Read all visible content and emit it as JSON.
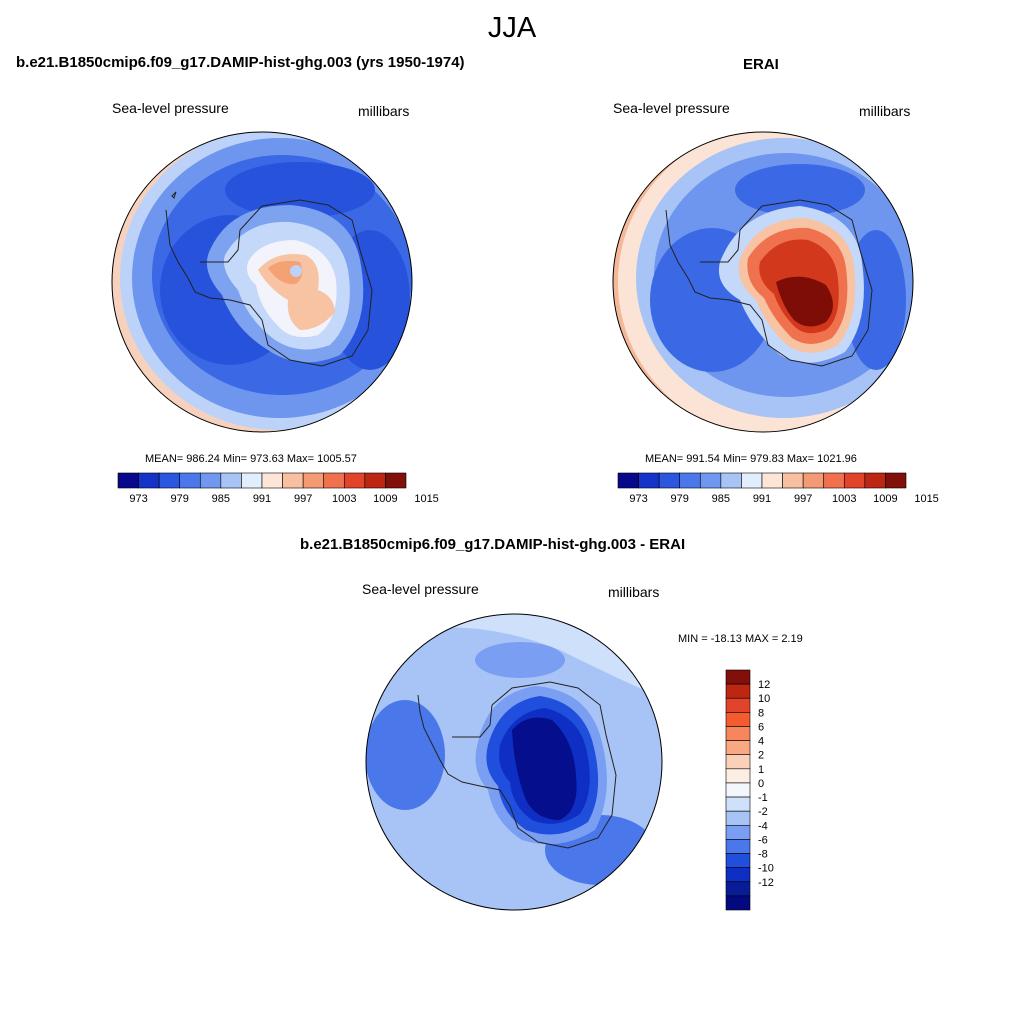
{
  "figure": {
    "season": "JJA"
  },
  "panels": [
    {
      "title": "b.e21.B1850cmip6.f09_g17.DAMIP-hist-ghg.003 (yrs 1950-1974)",
      "left_label": "Sea-level pressure",
      "right_label": "millibars",
      "stats": "MEAN= 986.24  Min= 973.63  Max= 1005.57",
      "colorbar_ticks": [
        "973",
        "979",
        "985",
        "991",
        "997",
        "1003",
        "1009",
        "1015"
      ],
      "colorbar_colors": [
        "#08088a",
        "#1434c9",
        "#2a56e0",
        "#4a78ea",
        "#7098f0",
        "#a8c4f6",
        "#e2eefc",
        "#fde6d8",
        "#f8c0a0",
        "#f49a74",
        "#ef714e",
        "#e1442b",
        "#bc2613",
        "#82100a"
      ],
      "antarctic_max_color": "#f4a274"
    },
    {
      "title": "ERAI",
      "left_label": "Sea-level pressure",
      "right_label": "millibars",
      "stats": "MEAN= 991.54  Min= 979.83  Max= 1021.96",
      "colorbar_ticks": [
        "973",
        "979",
        "985",
        "991",
        "997",
        "1003",
        "1009",
        "1015"
      ],
      "colorbar_colors": [
        "#08088a",
        "#1434c9",
        "#2a56e0",
        "#4a78ea",
        "#7098f0",
        "#a8c4f6",
        "#e2eefc",
        "#fde6d8",
        "#f8c0a0",
        "#f49a74",
        "#ef714e",
        "#e1442b",
        "#bc2613",
        "#82100a"
      ],
      "antarctic_max_color": "#7d0d06"
    },
    {
      "title": "b.e21.B1850cmip6.f09_g17.DAMIP-hist-ghg.003 - ERAI",
      "left_label": "Sea-level pressure",
      "right_label": "millibars",
      "stats": "MIN = -18.13 MAX =   2.19",
      "colorbar_ticks": [
        "12",
        "10",
        "8",
        "6",
        "4",
        "2",
        "1",
        "0",
        "-1",
        "-2",
        "-4",
        "-6",
        "-8",
        "-10",
        "-12"
      ],
      "colorbar_colors": [
        "#82100a",
        "#bc2613",
        "#e1442b",
        "#f45c30",
        "#f7865c",
        "#f8a882",
        "#fbd0b8",
        "#fdeee4",
        "#f4f6fe",
        "#cfe0fb",
        "#a8c4f6",
        "#7a9ef2",
        "#4a78ea",
        "#1f4fdc",
        "#0f2fc4",
        "#081c98",
        "#030a80"
      ],
      "antarctic_max_color": "#050e8c"
    }
  ]
}
